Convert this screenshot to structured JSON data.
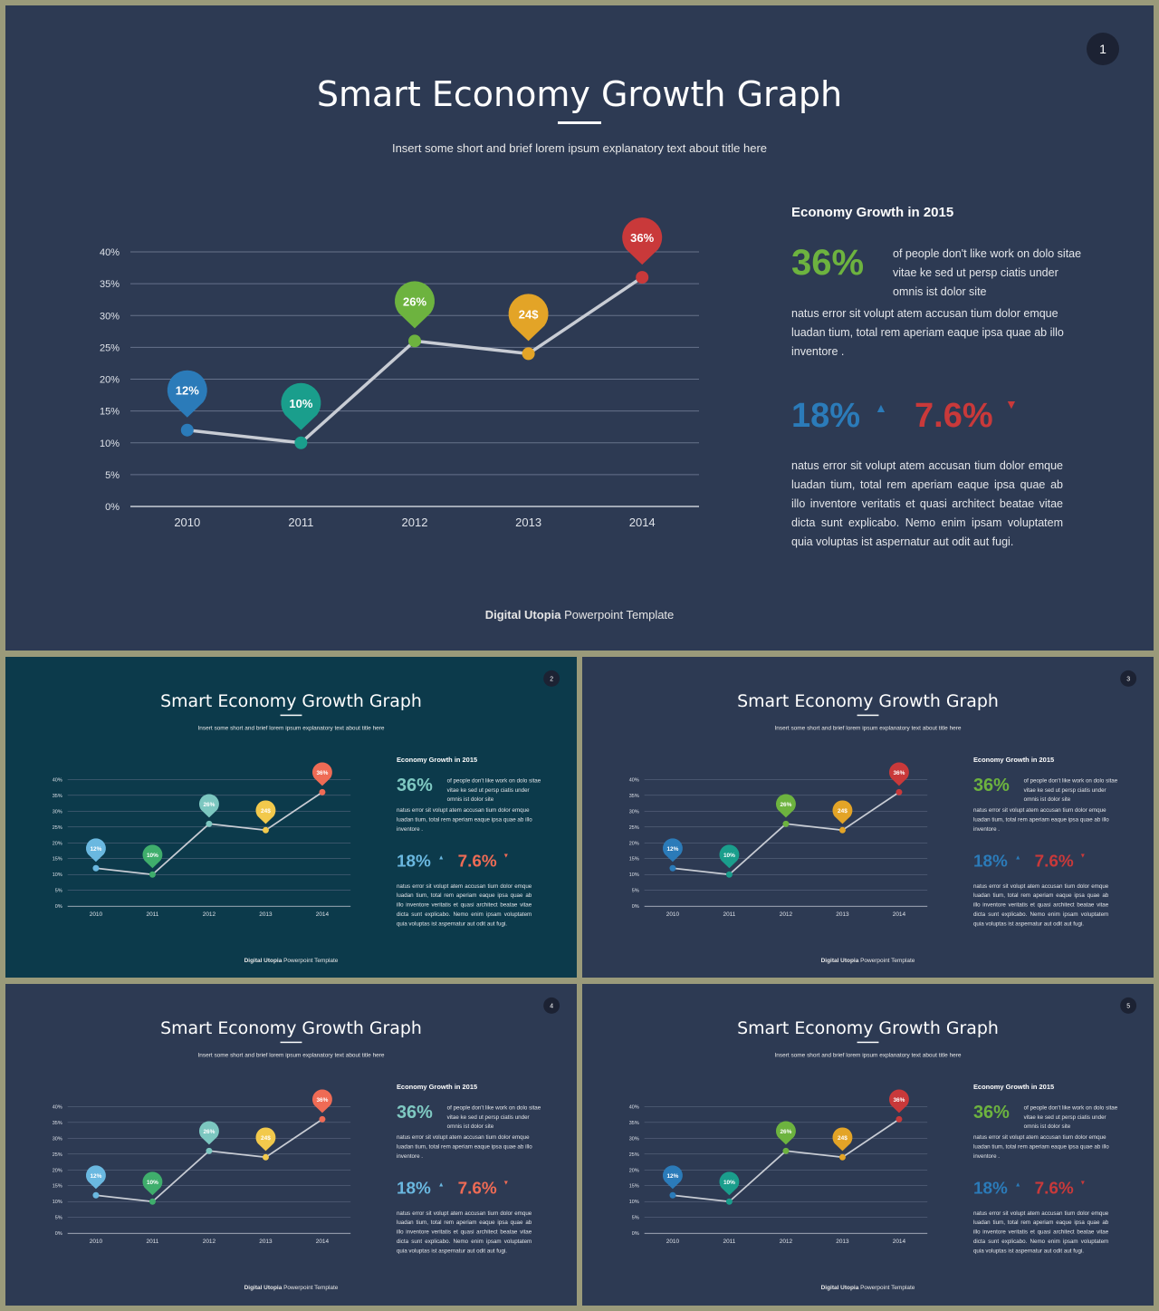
{
  "slides": [
    {
      "number": "1",
      "bg": "#2d3a53",
      "theme": "a"
    },
    {
      "number": "2",
      "bg": "#0c3a4b",
      "theme": "b"
    },
    {
      "number": "3",
      "bg": "#2d3a53",
      "theme": "a"
    },
    {
      "number": "4",
      "bg": "#2d3a53",
      "theme": "b"
    },
    {
      "number": "5",
      "bg": "#2d3a53",
      "theme": "a"
    }
  ],
  "title": "Smart Economy Growth Graph",
  "subtitle": "Insert some short and brief lorem ipsum explanatory text about title here",
  "side": {
    "heading": "Economy  Growth in 2015",
    "big_value": "36%",
    "desc1": "of people don't like work on dolo sitae vitae ke sed ut persp ciatis under omnis ist dolor site",
    "desc2": "natus error sit volupt atem accusan tium dolor emque luadan tium, total rem aperiam eaque ipsa quae ab illo inventore .",
    "stat1": "18%",
    "stat2": "7.6%",
    "up_glyph": "▲",
    "down_glyph": "▼",
    "desc3": "natus error sit volupt atem accusan tium dolor emque luadan tium, total rem aperiam eaque ipsa quae ab illo inventore veritatis et quasi architect beatae vitae dicta sunt explicabo.  Nemo enim ipsam voluptatem quia voluptas ist aspernatur aut odit aut fugi."
  },
  "footer": {
    "brand": "Digital Utopia",
    "rest": "Powerpoint Template"
  },
  "themes": {
    "a": {
      "marker_colors": [
        "#2b7bb9",
        "#1a9e8c",
        "#6db33f",
        "#e3a427",
        "#c9393a"
      ],
      "big_color": "#6db33f",
      "stat1_color": "#2b7bb9",
      "stat2_color": "#c9393a"
    },
    "b": {
      "marker_colors": [
        "#6ab8e0",
        "#3fae6c",
        "#7cc7c0",
        "#f2c94c",
        "#ef6b55"
      ],
      "big_color": "#7fc9c2",
      "stat1_color": "#6ab8e0",
      "stat2_color": "#ef6b55"
    }
  },
  "chart_data": {
    "type": "line",
    "categories": [
      "2010",
      "2011",
      "2012",
      "2013",
      "2014"
    ],
    "values": [
      12,
      10,
      26,
      24,
      36
    ],
    "point_labels": [
      "12%",
      "10%",
      "26%",
      "24$",
      "36%"
    ],
    "y_ticks": [
      "0%",
      "5%",
      "10%",
      "15%",
      "20%",
      "25%",
      "30%",
      "35%",
      "40%"
    ],
    "ylim": [
      0,
      40
    ],
    "grid": true
  }
}
